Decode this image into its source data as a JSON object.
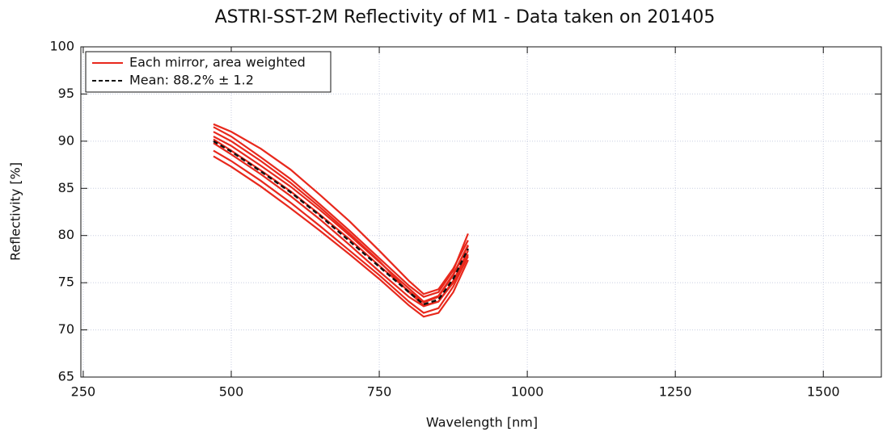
{
  "chart_data": {
    "type": "line",
    "title": "ASTRI-SST-2M Reflectivity of M1 - Data taken on 201405",
    "x_label": "Wavelength [nm]",
    "y_label": "Reflectivity [%]",
    "x": [
      470,
      500,
      550,
      600,
      650,
      700,
      750,
      800,
      825,
      850,
      875,
      900
    ],
    "series": [
      {
        "name": "Each mirror, area weighted",
        "color": "#e8281c",
        "values": [
          91.8,
          91.0,
          89.2,
          87.0,
          84.3,
          81.5,
          78.4,
          75.2,
          73.8,
          74.3,
          76.5,
          79.5
        ]
      },
      {
        "color": "#e8281c",
        "values": [
          91.5,
          90.5,
          88.3,
          86.0,
          83.3,
          80.5,
          77.6,
          74.7,
          73.5,
          74.0,
          76.3,
          80.2
        ]
      },
      {
        "color": "#e8281c",
        "values": [
          90.5,
          89.5,
          87.4,
          85.2,
          82.7,
          80.0,
          77.2,
          74.4,
          73.0,
          73.6,
          75.9,
          79.0
        ]
      },
      {
        "color": "#e8281c",
        "values": [
          89.8,
          88.6,
          86.5,
          84.2,
          81.7,
          79.0,
          76.2,
          73.5,
          72.5,
          73.0,
          75.2,
          78.4
        ]
      },
      {
        "color": "#e8281c",
        "values": [
          89.0,
          87.9,
          85.8,
          83.5,
          81.0,
          78.4,
          75.8,
          73.0,
          71.8,
          72.3,
          74.6,
          77.8
        ]
      },
      {
        "color": "#e8281c",
        "values": [
          88.4,
          87.3,
          85.2,
          82.9,
          80.5,
          78.0,
          75.4,
          72.6,
          71.4,
          71.8,
          74.0,
          77.4
        ]
      },
      {
        "color": "#e8281c",
        "values": [
          90.2,
          89.0,
          86.9,
          84.7,
          82.2,
          79.6,
          76.8,
          74.1,
          72.9,
          73.5,
          75.8,
          78.9
        ]
      },
      {
        "color": "#e8281c",
        "values": [
          91.0,
          90.0,
          87.9,
          85.6,
          83.0,
          80.2,
          77.3,
          74.0,
          72.6,
          73.0,
          75.0,
          78.0
        ]
      },
      {
        "name": "Mean: 88.2% ± 1.2",
        "color": "#111111",
        "dashed": true,
        "values": [
          90.0,
          88.9,
          86.8,
          84.6,
          82.1,
          79.4,
          76.7,
          74.0,
          72.7,
          73.2,
          75.4,
          78.6
        ]
      }
    ],
    "xlim": [
      246,
      1598
    ],
    "ylim": [
      65,
      100
    ],
    "xticks": [
      250,
      500,
      750,
      1000,
      1250,
      1500
    ],
    "yticks": [
      65,
      70,
      75,
      80,
      85,
      90,
      95,
      100
    ],
    "grid": true,
    "legend": "upper left"
  }
}
